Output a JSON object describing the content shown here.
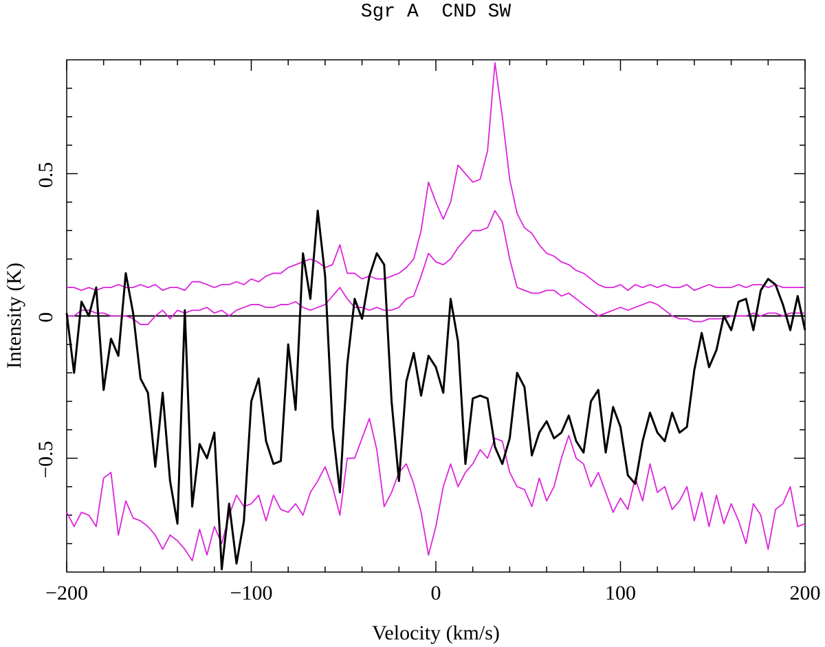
{
  "chart_data": {
    "type": "line",
    "title": "Sgr A  CND SW",
    "xlabel": "Velocity (km/s)",
    "ylabel": "Intensity (K)",
    "xlim": [
      -200,
      200
    ],
    "ylim": [
      -0.9,
      0.9
    ],
    "xticks": [
      {
        "value": -200,
        "label": "−200"
      },
      {
        "value": -100,
        "label": "−100"
      },
      0,
      100,
      200
    ],
    "yticks": [
      {
        "value": -0.5,
        "label": "−0.5"
      },
      0,
      0.5
    ],
    "xminorticks": [
      -180,
      -160,
      -140,
      -120,
      -80,
      -60,
      -40,
      -20,
      20,
      40,
      60,
      80,
      120,
      140,
      160,
      180
    ],
    "yminorticks": [
      -0.8,
      -0.7,
      -0.6,
      -0.4,
      -0.3,
      -0.2,
      -0.1,
      0.1,
      0.2,
      0.3,
      0.4,
      0.6,
      0.7,
      0.8
    ],
    "hline": 0,
    "x": [
      -200,
      -196,
      -192,
      -188,
      -184,
      -180,
      -176,
      -172,
      -168,
      -164,
      -160,
      -156,
      -152,
      -148,
      -144,
      -140,
      -136,
      -132,
      -128,
      -124,
      -120,
      -116,
      -112,
      -108,
      -104,
      -100,
      -96,
      -92,
      -88,
      -84,
      -80,
      -76,
      -72,
      -68,
      -64,
      -60,
      -56,
      -52,
      -48,
      -44,
      -40,
      -36,
      -32,
      -28,
      -24,
      -20,
      -16,
      -12,
      -8,
      -4,
      0,
      4,
      8,
      12,
      16,
      20,
      24,
      28,
      32,
      36,
      40,
      44,
      48,
      52,
      56,
      60,
      64,
      68,
      72,
      76,
      80,
      84,
      88,
      92,
      96,
      100,
      104,
      108,
      112,
      116,
      120,
      124,
      128,
      132,
      136,
      140,
      144,
      148,
      152,
      156,
      160,
      164,
      168,
      172,
      176,
      180,
      184,
      188,
      192,
      196,
      200
    ],
    "series": [
      {
        "color": "#dd22dd",
        "values": [
          0.1,
          0.1,
          0.09,
          0.1,
          0.09,
          0.1,
          0.1,
          0.11,
          0.1,
          0.1,
          0.11,
          0.1,
          0.11,
          0.09,
          0.1,
          0.1,
          0.09,
          0.12,
          0.12,
          0.11,
          0.1,
          0.11,
          0.11,
          0.12,
          0.11,
          0.13,
          0.12,
          0.14,
          0.15,
          0.15,
          0.17,
          0.18,
          0.19,
          0.2,
          0.19,
          0.17,
          0.18,
          0.25,
          0.15,
          0.15,
          0.13,
          0.14,
          0.13,
          0.13,
          0.14,
          0.15,
          0.17,
          0.2,
          0.3,
          0.47,
          0.4,
          0.34,
          0.4,
          0.53,
          0.5,
          0.47,
          0.48,
          0.58,
          0.89,
          0.7,
          0.48,
          0.36,
          0.31,
          0.29,
          0.25,
          0.22,
          0.21,
          0.19,
          0.18,
          0.16,
          0.15,
          0.13,
          0.11,
          0.1,
          0.1,
          0.11,
          0.09,
          0.11,
          0.1,
          0.11,
          0.1,
          0.11,
          0.1,
          0.1,
          0.11,
          0.09,
          0.1,
          0.11,
          0.1,
          0.1,
          0.1,
          0.11,
          0.1,
          0.11,
          0.11,
          0.1,
          0.11,
          0.1,
          0.1,
          0.1,
          0.1
        ]
      },
      {
        "color": "#dd22dd",
        "values": [
          0.0,
          0.0,
          0.02,
          0.02,
          0.01,
          0.01,
          0.0,
          0.0,
          0.0,
          -0.01,
          -0.03,
          -0.03,
          0.0,
          0.02,
          -0.01,
          0.02,
          0.01,
          0.02,
          0.02,
          0.03,
          0.01,
          0.02,
          0.0,
          0.02,
          0.03,
          0.04,
          0.04,
          0.03,
          0.03,
          0.04,
          0.04,
          0.05,
          0.03,
          0.02,
          0.03,
          0.04,
          0.07,
          0.1,
          0.06,
          0.03,
          0.03,
          0.02,
          0.03,
          0.02,
          0.02,
          0.03,
          0.06,
          0.07,
          0.14,
          0.22,
          0.19,
          0.18,
          0.2,
          0.24,
          0.27,
          0.3,
          0.3,
          0.31,
          0.37,
          0.33,
          0.2,
          0.1,
          0.09,
          0.08,
          0.08,
          0.09,
          0.09,
          0.07,
          0.08,
          0.06,
          0.04,
          0.02,
          0.0,
          0.01,
          0.02,
          0.03,
          0.02,
          0.03,
          0.04,
          0.05,
          0.04,
          0.02,
          0.0,
          -0.01,
          -0.01,
          -0.02,
          -0.02,
          -0.01,
          -0.01,
          -0.01,
          0.0,
          0.0,
          0.0,
          0.01,
          0.0,
          0.01,
          0.01,
          0.0,
          0.01,
          0.01,
          0.01
        ]
      },
      {
        "color": "#dd22dd",
        "values": [
          -0.69,
          -0.74,
          -0.69,
          -0.7,
          -0.74,
          -0.57,
          -0.55,
          -0.77,
          -0.65,
          -0.71,
          -0.72,
          -0.74,
          -0.77,
          -0.82,
          -0.77,
          -0.79,
          -0.82,
          -0.86,
          -0.75,
          -0.84,
          -0.74,
          -0.8,
          -0.7,
          -0.63,
          -0.67,
          -0.66,
          -0.63,
          -0.72,
          -0.63,
          -0.68,
          -0.69,
          -0.66,
          -0.7,
          -0.62,
          -0.58,
          -0.53,
          -0.6,
          -0.7,
          -0.5,
          -0.5,
          -0.43,
          -0.36,
          -0.47,
          -0.67,
          -0.62,
          -0.55,
          -0.52,
          -0.59,
          -0.69,
          -0.84,
          -0.74,
          -0.6,
          -0.52,
          -0.6,
          -0.55,
          -0.52,
          -0.47,
          -0.5,
          -0.43,
          -0.44,
          -0.55,
          -0.6,
          -0.61,
          -0.67,
          -0.57,
          -0.65,
          -0.6,
          -0.5,
          -0.42,
          -0.5,
          -0.52,
          -0.6,
          -0.55,
          -0.62,
          -0.69,
          -0.64,
          -0.68,
          -0.57,
          -0.65,
          -0.52,
          -0.62,
          -0.6,
          -0.68,
          -0.65,
          -0.6,
          -0.72,
          -0.62,
          -0.74,
          -0.63,
          -0.73,
          -0.66,
          -0.72,
          -0.8,
          -0.66,
          -0.7,
          -0.82,
          -0.68,
          -0.66,
          -0.6,
          -0.74,
          -0.73
        ]
      },
      {
        "color": "#000000",
        "values": [
          0.01,
          -0.2,
          0.05,
          0.0,
          0.1,
          -0.26,
          -0.08,
          -0.14,
          0.15,
          0.01,
          -0.22,
          -0.27,
          -0.53,
          -0.27,
          -0.58,
          -0.73,
          0.02,
          -0.67,
          -0.45,
          -0.5,
          -0.41,
          -0.89,
          -0.66,
          -0.87,
          -0.72,
          -0.3,
          -0.22,
          -0.44,
          -0.52,
          -0.51,
          -0.1,
          -0.33,
          0.22,
          0.06,
          0.37,
          0.14,
          -0.39,
          -0.62,
          -0.17,
          0.06,
          -0.01,
          0.14,
          0.22,
          0.18,
          -0.3,
          -0.58,
          -0.23,
          -0.13,
          -0.28,
          -0.14,
          -0.18,
          -0.27,
          0.06,
          -0.09,
          -0.52,
          -0.29,
          -0.28,
          -0.29,
          -0.46,
          -0.52,
          -0.43,
          -0.2,
          -0.25,
          -0.49,
          -0.41,
          -0.37,
          -0.43,
          -0.41,
          -0.35,
          -0.44,
          -0.48,
          -0.3,
          -0.26,
          -0.48,
          -0.32,
          -0.39,
          -0.56,
          -0.59,
          -0.44,
          -0.34,
          -0.41,
          -0.44,
          -0.34,
          -0.41,
          -0.39,
          -0.19,
          -0.06,
          -0.18,
          -0.12,
          0.0,
          -0.05,
          0.05,
          0.06,
          -0.05,
          0.09,
          0.13,
          0.11,
          0.04,
          -0.05,
          0.07,
          -0.05
        ]
      }
    ]
  }
}
